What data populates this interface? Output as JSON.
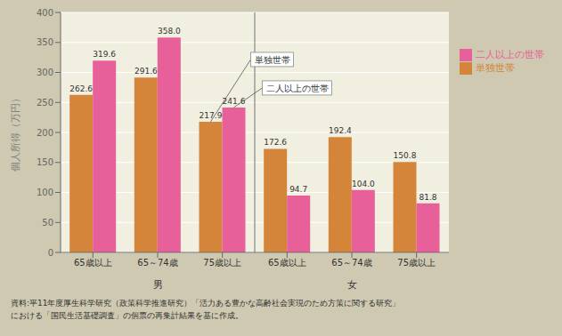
{
  "chart_data": {
    "type": "bar",
    "categories": [
      "65歳以上",
      "65～74歳",
      "75歳以上",
      "65歳以上",
      "65～74歳",
      "75歳以上"
    ],
    "groups": [
      {
        "label": "男",
        "categories": [
          "65歳以上",
          "65～74歳",
          "75歳以上"
        ]
      },
      {
        "label": "女",
        "categories": [
          "65歳以上",
          "65～74歳",
          "75歳以上"
        ]
      }
    ],
    "series": [
      {
        "name": "単独世帯",
        "color": "#D4853A",
        "values": [
          262.6,
          291.6,
          217.9,
          172.6,
          192.4,
          150.8
        ]
      },
      {
        "name": "二人以上の世帯",
        "color": "#E8609A",
        "values": [
          319.6,
          358.0,
          241.6,
          94.7,
          104.0,
          81.8
        ],
        "value_labels": [
          "319.6",
          "358.0",
          "241.6",
          "94.7",
          "104.0",
          "81.8"
        ]
      }
    ],
    "ylabel": "個人所得（万円）",
    "ylim": [
      0,
      400
    ],
    "yticks": [
      0,
      50,
      100,
      150,
      200,
      250,
      300,
      350,
      400
    ],
    "grid": true,
    "data_labels": true,
    "legend": "upper right",
    "annotations": [
      {
        "text": "単独世帯",
        "series": "単独世帯",
        "category_index": 2
      },
      {
        "text": "二人以上の世帯",
        "series": "二人以上の世帯",
        "category_index": 2
      }
    ],
    "footnote": [
      "資料:平11年度厚生科学研究（政策科学推進研究）「活力ある豊かな高齢社会実現のため方策に関する研究」",
      "における「国民生活基礎調査」の個票の再集計結果を基に作成。"
    ]
  }
}
